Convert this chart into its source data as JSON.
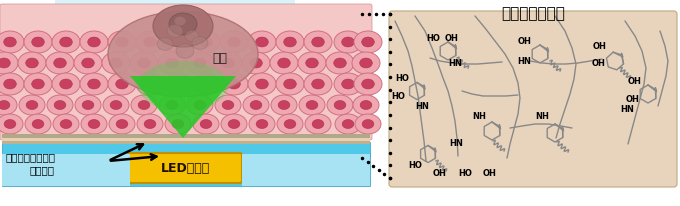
{
  "polydopamine_title": "ポリドーパミン",
  "label_led": "LEDチップ",
  "label_tumor": "腫瘍",
  "label_silicone": "シリコーンゴム製\nナノ薄膜",
  "bg_color": "#ffffff",
  "beige_bg": "#e8d4bc",
  "tissue_pink_light": "#f5c8c8",
  "tissue_pink_mid": "#eeaaaa",
  "cell_outer": "#e89090",
  "cell_inner": "#c04050",
  "tumor_pink": "#c89090",
  "tumor_dark": "#a06060",
  "led_yellow": "#f5c000",
  "led_border": "#c09000",
  "cyan_layer": "#50c8e8",
  "cyan_dark": "#30a0c0",
  "beige_skin": "#e8d0b0",
  "gray_strip": "#b0a888",
  "green_bright": "#30d030",
  "green_dark": "#208820",
  "chem_line": "#888888",
  "chem_bold": "#555555"
}
